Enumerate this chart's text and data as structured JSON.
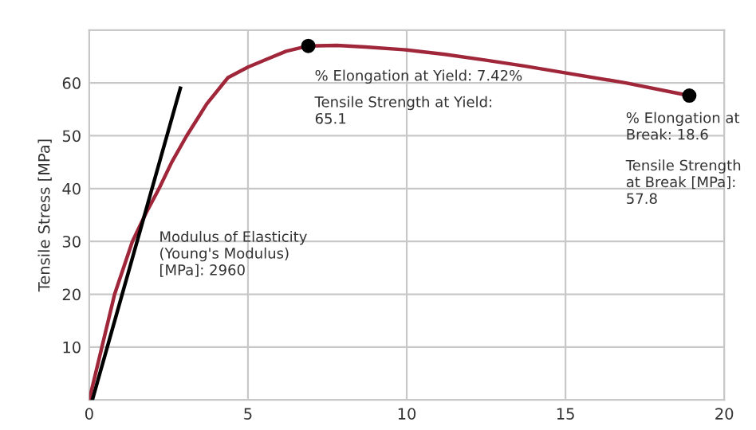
{
  "chart_data": {
    "type": "line",
    "ylabel": "Tensile Stress [MPa]",
    "xlim": [
      0,
      20
    ],
    "xticks": [
      0,
      5,
      10,
      15,
      20
    ],
    "ylim": [
      0,
      70
    ],
    "yticks": [
      10,
      20,
      30,
      40,
      50,
      60
    ],
    "grid": true,
    "series": [
      {
        "color": "#a0263a",
        "x": [
          0,
          0.4,
          0.8,
          1.36,
          1.8,
          2.2,
          2.6,
          3.07,
          3.7,
          4.37,
          5.0,
          5.6,
          6.2,
          6.9,
          7.8,
          8.7,
          9.9,
          11.2,
          12.5,
          13.7,
          14.9,
          16.9,
          18.9
        ],
        "values": [
          0,
          10,
          20,
          30,
          35.5,
          40,
          45,
          50,
          56,
          61,
          63,
          64.5,
          66,
          67,
          67.1,
          66.8,
          66.3,
          65.4,
          64.3,
          63.2,
          62,
          60,
          57.6
        ]
      },
      {
        "color": "#000000",
        "x": [
          0.1,
          2.87
        ],
        "values": [
          0,
          59
        ]
      },
      {
        "type": "scatter",
        "color": "#000000",
        "x": [
          6.9,
          18.9
        ],
        "values": [
          67,
          57.6
        ]
      }
    ],
    "annotations": [
      "% Elongation at Yield: 7.42%",
      "Tensile Strength at Yield:\n65.1",
      "% Elongation at\nBreak: 18.6",
      "Tensile Strength\nat Break [MPa]:\n57.8",
      "Modulus of Elasticity\n(Young's Modulus)\n[MPa]: 2960"
    ]
  }
}
